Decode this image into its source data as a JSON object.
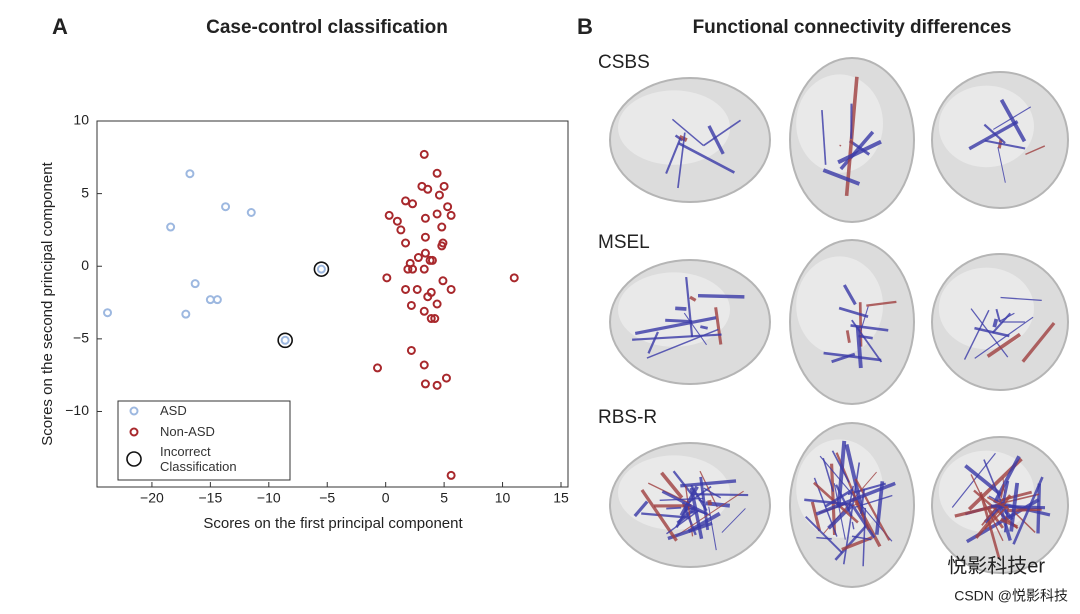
{
  "chart_data": {
    "type": "scatter",
    "panel_label": "A",
    "title": "Case-control classification",
    "xlabel": "Scores on the first principal component",
    "ylabel": "Scores on the second principal component",
    "xlim": [
      -24.7,
      15.6
    ],
    "ylim": [
      -15.2,
      10
    ],
    "xticks": [
      {
        "value": -20,
        "label": "−20"
      },
      {
        "value": -15,
        "label": "−15"
      },
      {
        "value": -10,
        "label": "−10"
      },
      {
        "value": -5,
        "label": "−5"
      },
      0,
      5,
      10,
      15
    ],
    "yticks": [
      {
        "value": -10,
        "label": "−10"
      },
      {
        "value": -5,
        "label": "−5"
      },
      0,
      5,
      10
    ],
    "legend": "lower left",
    "series": [
      {
        "name": "ASD",
        "color": "#9db8e0",
        "x": [
          -16.75,
          -13.7,
          -11.5,
          -18.4,
          -16.3,
          -15.0,
          -14.4,
          -17.1,
          -23.8,
          -8.6,
          -5.5
        ],
        "values": [
          6.37,
          4.1,
          3.7,
          2.7,
          -1.2,
          -2.3,
          -2.3,
          -3.3,
          -3.2,
          -5.1,
          -0.2
        ]
      },
      {
        "name": "Non-ASD",
        "color": "#a8282c",
        "x": [
          3.3,
          4.4,
          5.0,
          3.1,
          3.6,
          4.6,
          1.7,
          2.3,
          5.3,
          4.4,
          5.6,
          0.3,
          3.4,
          1.0,
          4.8,
          1.3,
          3.4,
          1.7,
          4.9,
          4.8,
          3.4,
          2.8,
          3.8,
          4.0,
          2.1,
          1.9,
          2.3,
          3.3,
          0.1,
          4.9,
          11.0,
          1.7,
          2.7,
          5.6,
          3.9,
          3.6,
          2.2,
          4.4,
          3.3,
          3.9,
          4.2,
          2.2,
          3.3,
          -0.7,
          5.2,
          3.4,
          4.4,
          5.6
        ],
        "values": [
          7.7,
          6.4,
          5.5,
          5.5,
          5.3,
          4.9,
          4.5,
          4.3,
          4.1,
          3.6,
          3.5,
          3.5,
          3.3,
          3.1,
          2.7,
          2.5,
          2.0,
          1.6,
          1.6,
          1.4,
          0.9,
          0.6,
          0.4,
          0.4,
          0.2,
          -0.2,
          -0.2,
          -0.2,
          -0.8,
          -1.0,
          -0.8,
          -1.6,
          -1.6,
          -1.6,
          -1.8,
          -2.1,
          -2.7,
          -2.6,
          -3.1,
          -3.6,
          -3.6,
          -5.8,
          -6.8,
          -7.0,
          -7.7,
          -8.1,
          -8.2,
          -14.4
        ]
      },
      {
        "name": "Incorrect Classification",
        "color": "#111111",
        "x": [
          -8.6,
          -5.5
        ],
        "values": [
          -5.1,
          -0.2
        ]
      }
    ]
  },
  "panel_b": {
    "panel_label": "B",
    "title": "Functional connectivity differences",
    "rows": [
      "CSBS",
      "MSEL",
      "RBS-R"
    ]
  },
  "watermark": {
    "account": "悦影科技er",
    "source": "CSDN @悦影科技"
  }
}
